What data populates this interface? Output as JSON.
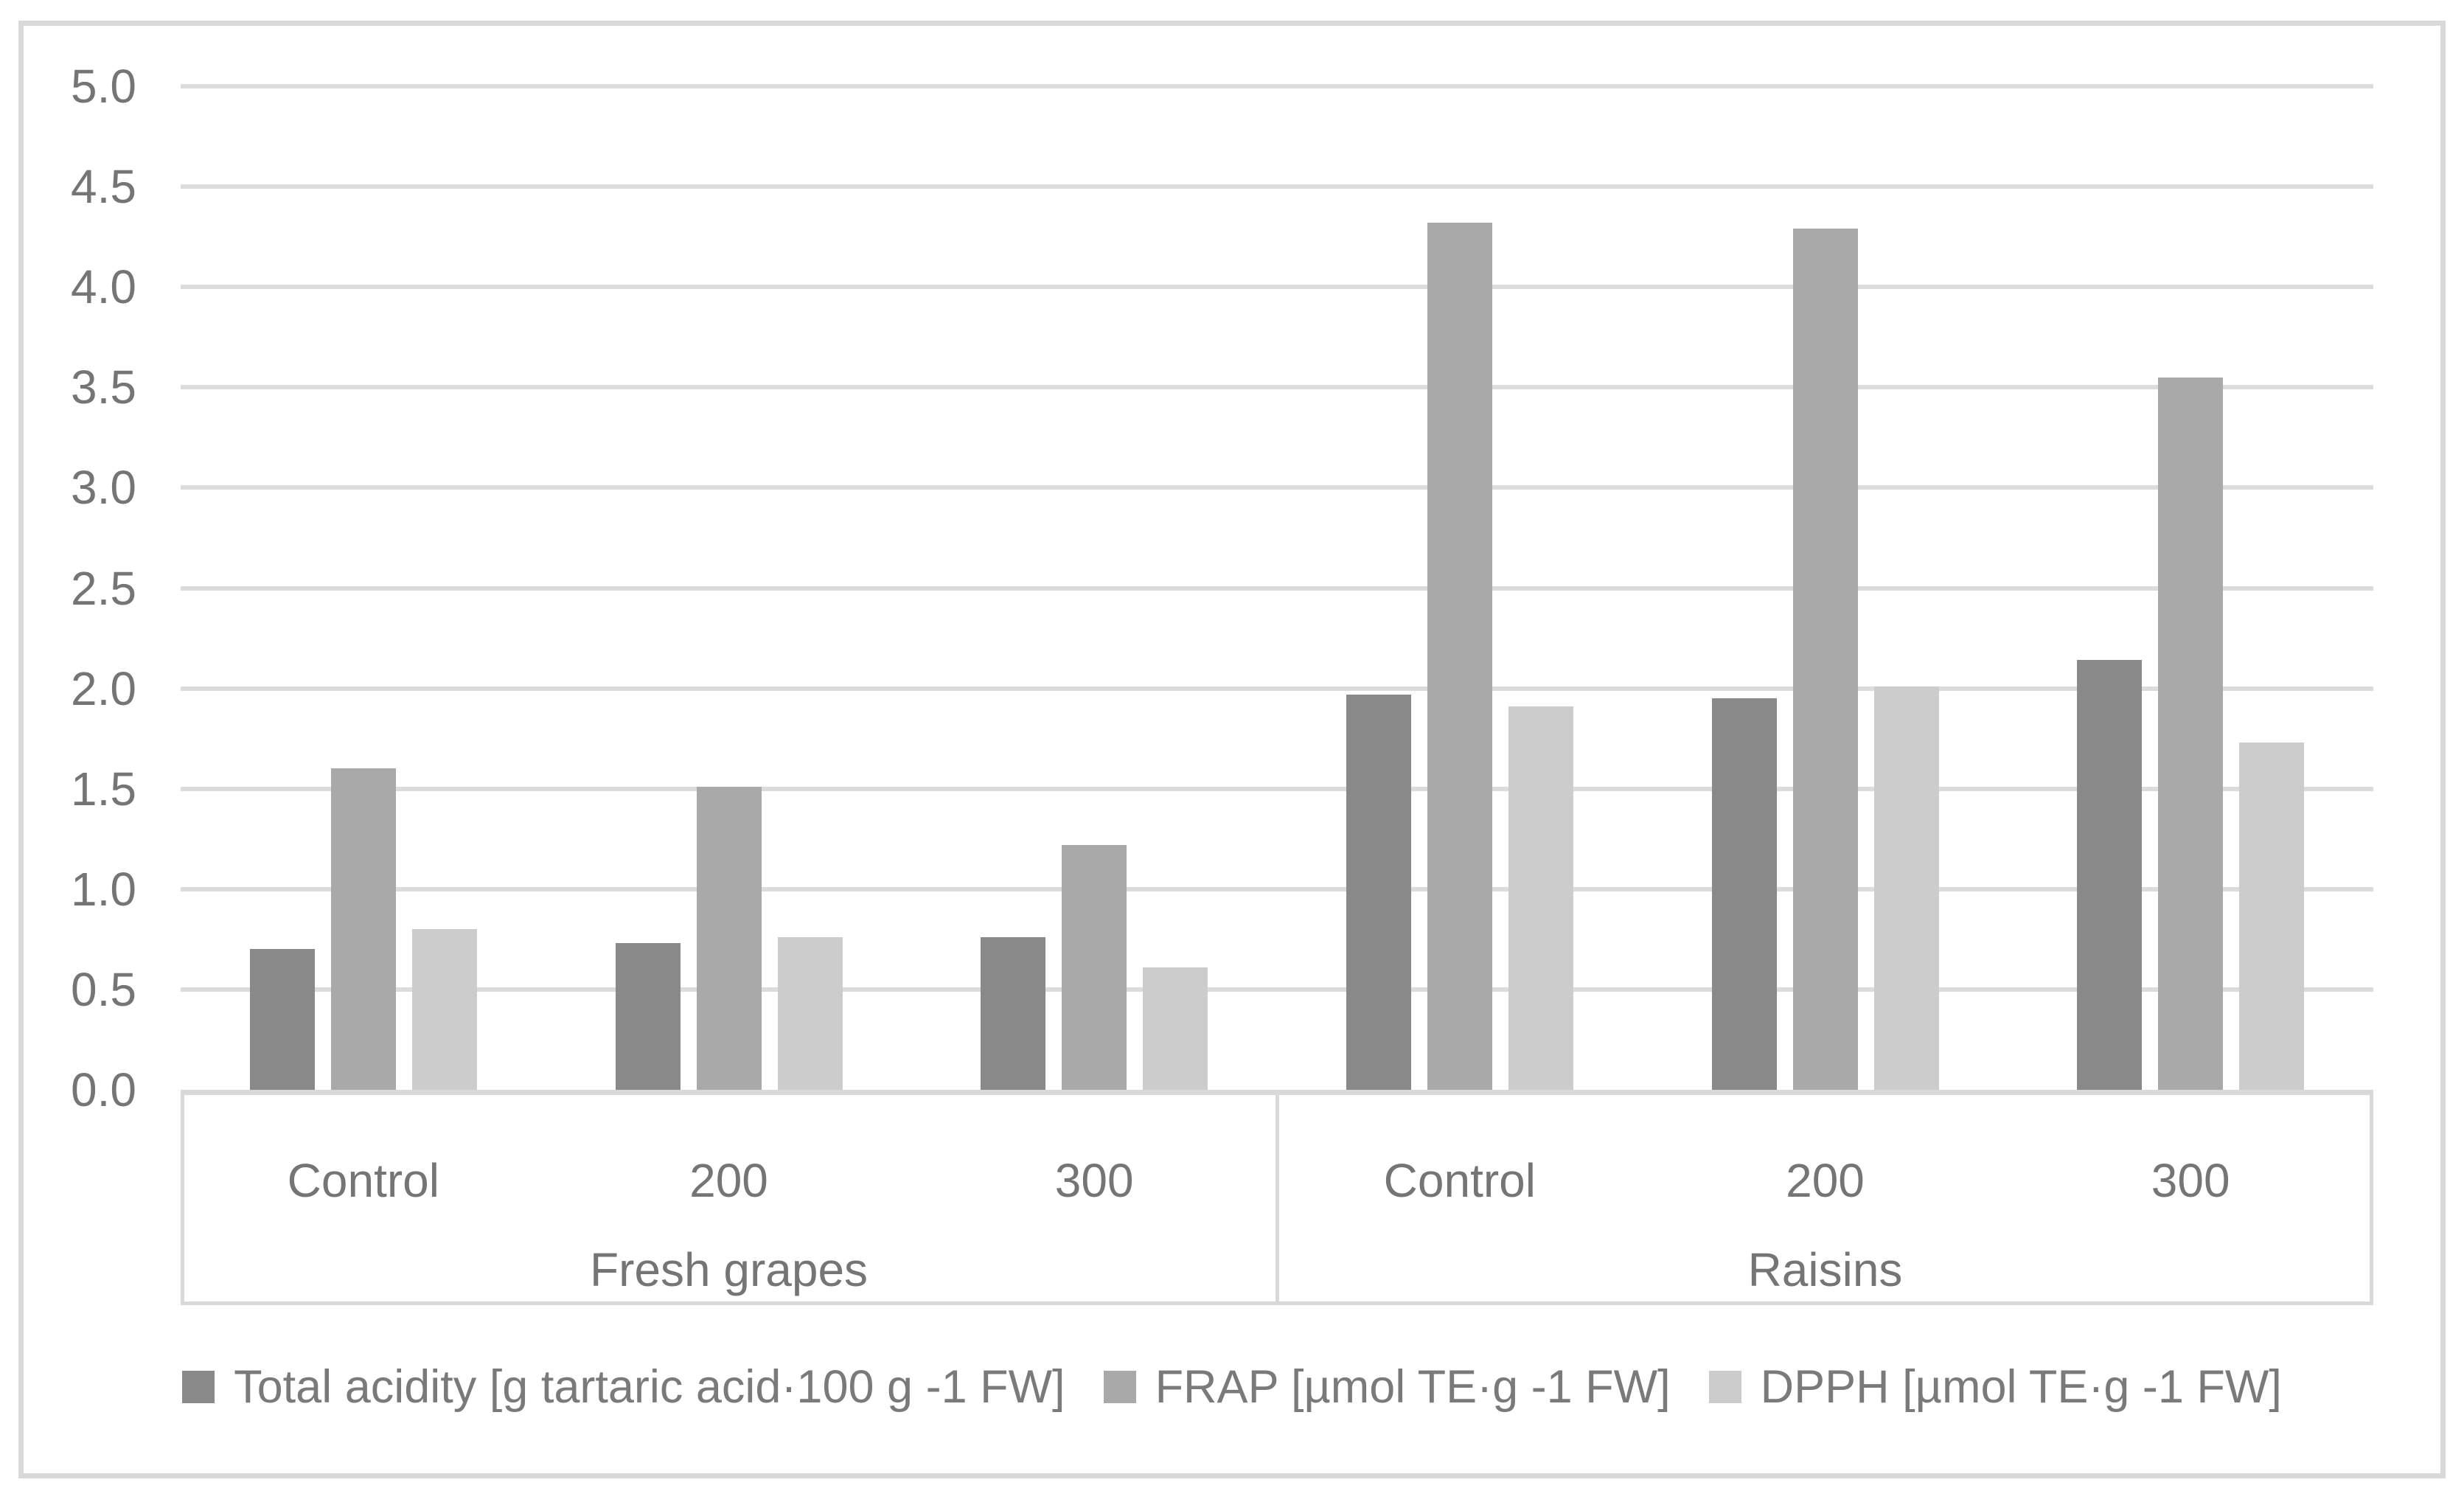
{
  "page": {
    "background": "#ffffff"
  },
  "chart_data": {
    "type": "bar",
    "title": "",
    "xlabel": "",
    "ylabel": "",
    "group_axis": [
      {
        "label": "Fresh grapes",
        "categories": [
          "Control",
          "200",
          "300"
        ]
      },
      {
        "label": "Raisins",
        "categories": [
          "Control",
          "200",
          "300"
        ]
      }
    ],
    "series": [
      {
        "name": "Total acidity [g tartaric acid·100 g -1 FW]",
        "color": "#898989",
        "values": [
          0.7,
          0.73,
          0.76,
          1.97,
          1.95,
          2.14
        ]
      },
      {
        "name": "FRAP [µmol TE·g -1 FW]",
        "color": "#a9a9a9",
        "values": [
          1.6,
          1.51,
          1.22,
          4.32,
          4.29,
          3.55
        ]
      },
      {
        "name": "DPPH [µmol TE·g -1 FW]",
        "color": "#cccccc",
        "values": [
          0.8,
          0.76,
          0.61,
          1.91,
          2.01,
          1.73
        ]
      }
    ],
    "ylim": [
      0,
      5
    ],
    "ytick_step": 0.5,
    "ytick_decimals": 1,
    "ytick_labels": [
      "0.0",
      "0.5",
      "1.0",
      "1.5",
      "2.0",
      "2.5",
      "3.0",
      "3.5",
      "4.0",
      "4.5",
      "5.0"
    ],
    "grid": true,
    "legend_position": "bottom",
    "colors": {
      "gridline": "#dcdcdc",
      "axis_line": "#d9d9d9",
      "frame_border": "#d9d9d9",
      "tick_text": "#757575",
      "legend_text": "#7a7a7a"
    }
  }
}
